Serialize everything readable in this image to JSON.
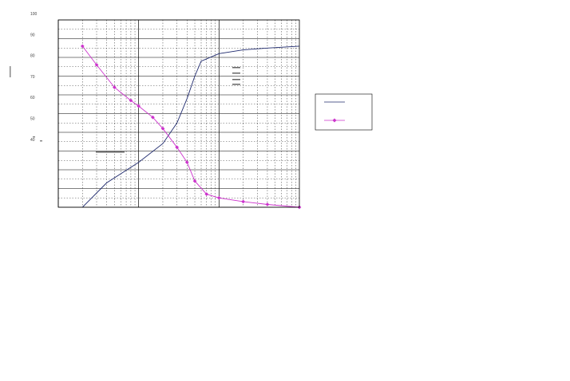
{
  "chart_data": {
    "type": "line",
    "title": "",
    "xlabel": "",
    "ylabel": "",
    "x_scale": "log",
    "xlim": [
      0.1,
      100
    ],
    "ylim": [
      0,
      100
    ],
    "y_ticks": [
      "100",
      "90",
      "80",
      "70",
      "60",
      "50",
      "40"
    ],
    "grid": true,
    "legend_placement": "right",
    "series": [
      {
        "color": "#1f2a6e",
        "marker": "none",
        "points": [
          [
            0.2,
            0
          ],
          [
            0.4,
            13
          ],
          [
            1.0,
            24
          ],
          [
            2.0,
            34
          ],
          [
            3.0,
            45
          ],
          [
            4.0,
            58
          ],
          [
            5.0,
            70
          ],
          [
            6.0,
            78
          ],
          [
            10,
            82
          ],
          [
            20,
            84
          ],
          [
            40,
            85
          ],
          [
            100,
            86
          ]
        ]
      },
      {
        "color": "#cc33cc",
        "marker": "diamond",
        "points": [
          [
            0.2,
            86
          ],
          [
            0.3,
            76
          ],
          [
            0.5,
            64
          ],
          [
            0.8,
            57
          ],
          [
            1.0,
            54
          ],
          [
            1.5,
            48
          ],
          [
            2.0,
            42
          ],
          [
            3.0,
            32
          ],
          [
            4.0,
            24
          ],
          [
            5.0,
            14
          ],
          [
            7.0,
            7
          ],
          [
            10,
            5
          ],
          [
            20,
            3
          ],
          [
            40,
            1.5
          ],
          [
            100,
            0
          ]
        ]
      }
    ]
  },
  "colors": {
    "grid": "#000000",
    "axis": "#000000",
    "background": "#ffffff"
  }
}
